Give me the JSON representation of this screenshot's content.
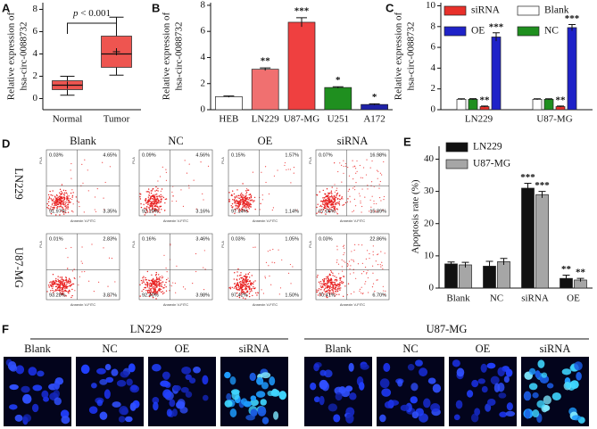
{
  "chart_data": [
    {
      "type": "box",
      "panel_label": "A",
      "ylabel": [
        "Relative expression of",
        "hsa-circ-0088732"
      ],
      "categories": [
        "Normal",
        "Tumor"
      ],
      "boxes": [
        {
          "min": 0.3,
          "q1": 0.8,
          "median": 1.2,
          "q3": 1.6,
          "max": 2.0,
          "mean": 1.2
        },
        {
          "min": 2.1,
          "q1": 2.8,
          "median": 4.0,
          "q3": 5.6,
          "max": 7.3,
          "mean": 4.2
        }
      ],
      "colors": [
        "#ee5550",
        "#ee5550"
      ],
      "ylim": [
        -1,
        8.6
      ],
      "yticks": [
        0,
        2,
        4,
        6,
        8
      ],
      "annotation": {
        "symbol": "p",
        "text": "< 0.001"
      }
    },
    {
      "type": "bar",
      "panel_label": "B",
      "ylabel": [
        "Relative expression of",
        "hsa-circ-0088732"
      ],
      "categories": [
        "HEB",
        "LN229",
        "U87-MG",
        "U251",
        "A172"
      ],
      "values": [
        1.0,
        3.1,
        6.7,
        1.7,
        0.4
      ],
      "errors": [
        0.05,
        0.1,
        0.35,
        0.06,
        0.05
      ],
      "colors": [
        "#ffffff",
        "#f07070",
        "#ef4040",
        "#1f8f1f",
        "#1f22a8"
      ],
      "annotations": [
        null,
        "**",
        "***",
        "*",
        "*"
      ],
      "ylim": [
        0,
        8.2
      ],
      "yticks": [
        0,
        2,
        4,
        6,
        8
      ]
    },
    {
      "type": "grouped-bar",
      "panel_label": "C",
      "ylabel": [
        "Relative expression of",
        "hsa-circ-0088732"
      ],
      "categories": [
        "LN229",
        "U87-MG"
      ],
      "series": [
        {
          "name": "Blank",
          "color": "#ffffff",
          "values": [
            1.0,
            1.0
          ],
          "errors": [
            0.05,
            0.05
          ]
        },
        {
          "name": "NC",
          "color": "#1f8f1f",
          "values": [
            1.0,
            1.0
          ],
          "errors": [
            0.06,
            0.05
          ]
        },
        {
          "name": "siRNA",
          "color": "#e8302a",
          "values": [
            0.3,
            0.3
          ],
          "errors": [
            0.05,
            0.05
          ],
          "annotations": [
            "**",
            "**"
          ]
        },
        {
          "name": "OE",
          "color": "#1f22c8",
          "values": [
            7.0,
            7.9
          ],
          "errors": [
            0.4,
            0.3
          ],
          "annotations": [
            "***",
            "***"
          ]
        }
      ],
      "ylim": [
        0,
        10.3
      ],
      "yticks": [
        0,
        2,
        4,
        6,
        8,
        10
      ]
    },
    {
      "type": "grouped-bar",
      "panel_label": "E",
      "ylabel": "Apoptosis rate (%)",
      "categories": [
        "Blank",
        "NC",
        "siRNA",
        "OE"
      ],
      "series": [
        {
          "name": "LN229",
          "color": "#111111",
          "values": [
            7.5,
            6.8,
            31,
            3
          ],
          "errors": [
            0.6,
            1.5,
            1.5,
            1.0
          ],
          "annotations": [
            null,
            null,
            "***",
            "**"
          ]
        },
        {
          "name": "U87-MG",
          "color": "#a6a6a6",
          "values": [
            7.2,
            8.2,
            29,
            2.5
          ],
          "errors": [
            0.8,
            1.0,
            1.0,
            0.5
          ],
          "annotations": [
            null,
            null,
            "***",
            "**"
          ]
        }
      ],
      "ylim": [
        0,
        44
      ],
      "yticks": [
        0,
        10,
        20,
        30,
        40
      ]
    }
  ],
  "flow_cytometry": {
    "panel_label": "D",
    "columns": [
      "Blank",
      "NC",
      "OE",
      "siRNA"
    ],
    "xlabel": "Annexin V-FITC",
    "ylabel": "PI-A",
    "rows": [
      {
        "name": "LN229",
        "plots": [
          [
            "0.03%",
            "4.65%",
            "91.97%",
            "3.35%"
          ],
          [
            "0.09%",
            "4.56%",
            "92.19%",
            "3.16%"
          ],
          [
            "0.15%",
            "1.57%",
            "97.14%",
            "1.14%"
          ],
          [
            "0.07%",
            "16.98%",
            "67.06%",
            "15.89%"
          ]
        ]
      },
      {
        "name": "U87-MG",
        "plots": [
          [
            "0.01%",
            "2.83%",
            "93.28%",
            "3.87%"
          ],
          [
            "0.16%",
            "3.46%",
            "92.40%",
            "3.98%"
          ],
          [
            "0.03%",
            "1.05%",
            "97.42%",
            "1.50%"
          ],
          [
            "0.03%",
            "22.86%",
            "70.41%",
            "6.70%"
          ]
        ]
      }
    ]
  },
  "imaging": {
    "panel_label": "F",
    "groups": [
      {
        "name": "LN229",
        "columns": [
          "Blank",
          "NC",
          "OE",
          "siRNA"
        ]
      },
      {
        "name": "U87-MG",
        "columns": [
          "Blank",
          "NC",
          "OE",
          "siRNA"
        ]
      }
    ]
  }
}
